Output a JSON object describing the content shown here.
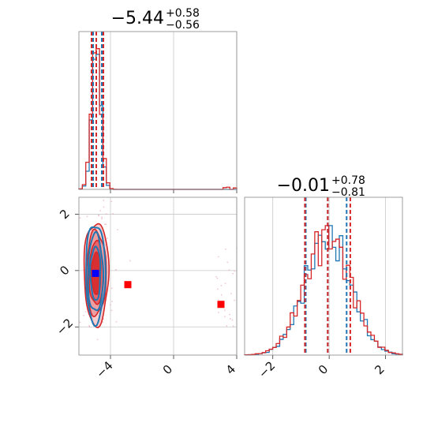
{
  "colors": {
    "blue": "#1f77b4",
    "red": "#d62728",
    "marker_blue": "#0000ff",
    "marker_red": "#ff0000"
  },
  "chart_data": {
    "type": "corner",
    "grid": true,
    "parameters": [
      {
        "title_main": "−5.44",
        "title_plus": "+0.58",
        "title_minus": "−0.56",
        "range": [
          -6.0,
          4.0
        ],
        "ticks": [
          {
            "v": -4,
            "label": "−4"
          },
          {
            "v": 0,
            "label": "0"
          },
          {
            "v": 4,
            "label": "4"
          }
        ]
      },
      {
        "title_main": "−0.01",
        "title_plus": "+0.78",
        "title_minus": "−0.81",
        "range": [
          -3.0,
          2.6
        ],
        "ticks": [
          {
            "v": -2,
            "label": "−2"
          },
          {
            "v": 0,
            "label": "0"
          },
          {
            "v": 2,
            "label": "2"
          }
        ]
      }
    ],
    "hist_x": {
      "series": [
        {
          "color": "blue",
          "mean": -4.9,
          "sd": 0.28,
          "bins": 46,
          "quantiles": [
            -5.1,
            -4.9,
            -4.55
          ],
          "outliers": []
        },
        {
          "color": "red",
          "mean": -4.9,
          "sd": 0.3,
          "bins": 46,
          "quantiles": [
            -5.2,
            -4.9,
            -4.45
          ],
          "outliers": [
            [
              3.2,
              0.012
            ],
            [
              3.55,
              0.015
            ],
            [
              3.9,
              0.01
            ]
          ]
        }
      ]
    },
    "hist_y": {
      "series": [
        {
          "color": "blue",
          "mean": -0.05,
          "sd": 0.8,
          "bins": 45,
          "quantiles": [
            -0.83,
            -0.05,
            0.62
          ]
        },
        {
          "color": "red",
          "mean": -0.05,
          "sd": 0.82,
          "bins": 45,
          "quantiles": [
            -0.86,
            -0.05,
            0.75
          ]
        }
      ]
    },
    "scatter": {
      "contours_red": [
        {
          "cx": -4.9,
          "cy": -0.1,
          "rx": 0.78,
          "ry": 1.82
        },
        {
          "cx": -4.9,
          "cy": -0.1,
          "rx": 0.62,
          "ry": 1.5
        },
        {
          "cx": -4.9,
          "cy": -0.1,
          "rx": 0.45,
          "ry": 1.12
        },
        {
          "cx": -4.9,
          "cy": -0.1,
          "rx": 0.3,
          "ry": 0.75
        }
      ],
      "contours_blue": [
        {
          "cx": -4.95,
          "cy": -0.1,
          "rx": 0.62,
          "ry": 1.75
        },
        {
          "cx": -4.95,
          "cy": -0.1,
          "rx": 0.48,
          "ry": 1.38
        },
        {
          "cx": -4.95,
          "cy": -0.1,
          "rx": 0.32,
          "ry": 0.95
        }
      ],
      "markers": [
        {
          "x": -4.95,
          "y": -0.1,
          "color": "marker_blue"
        },
        {
          "x": -2.9,
          "y": -0.5,
          "color": "marker_red"
        },
        {
          "x": 3.0,
          "y": -1.2,
          "color": "marker_red"
        }
      ]
    }
  }
}
